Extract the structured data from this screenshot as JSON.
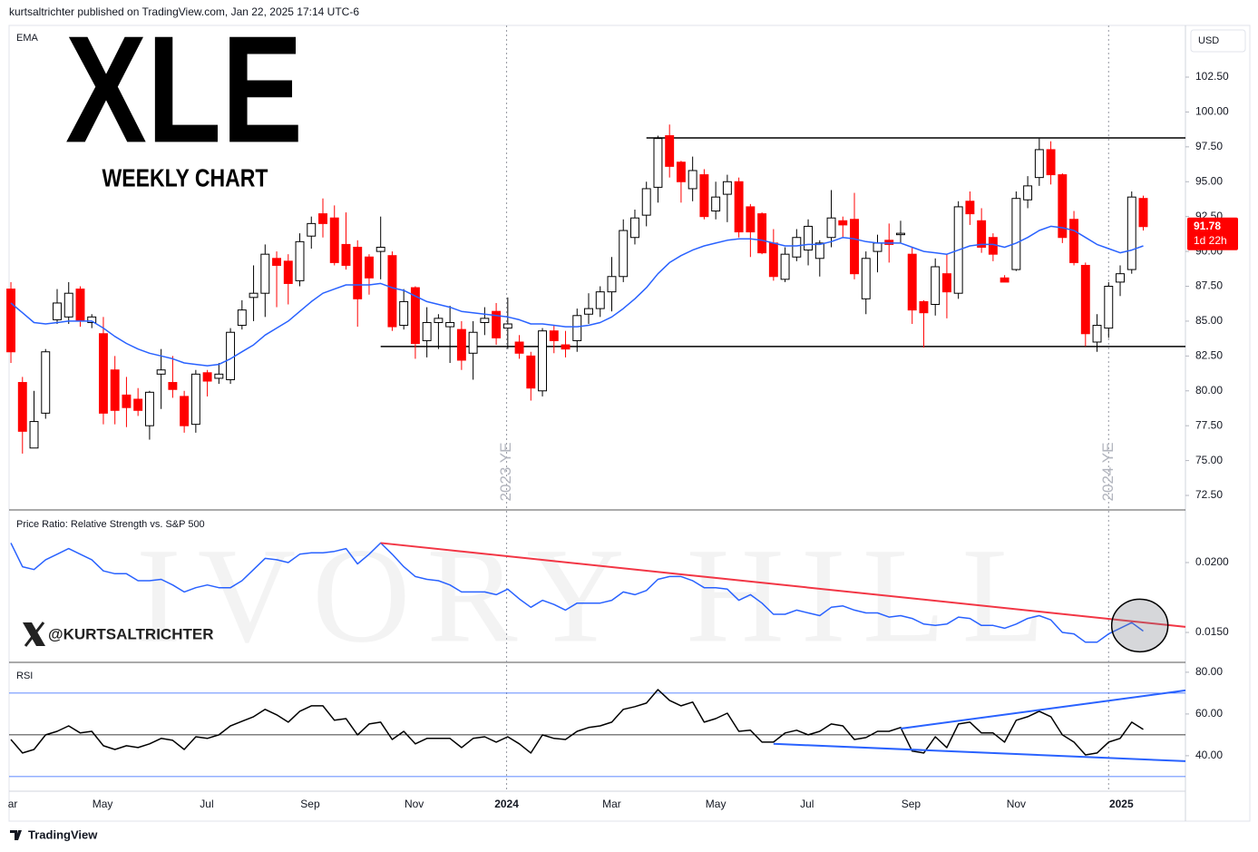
{
  "header": "kurtsaltrichter published on TradingView.com, Jan 22, 2025 17:14 UTC-6",
  "footer": "TradingView",
  "handle": "@KURTSALTRICHTER",
  "watermark": "IVORY HILL",
  "chart_data": {
    "type": "candlestick",
    "title": "XLE",
    "subtitle": "WEEKLY CHART",
    "indicator_label": "EMA",
    "currency": "USD",
    "up_color": "#ffffff",
    "down_color": "#ff0000",
    "ema_color": "#2962ff",
    "xlim": [
      -0.16,
      101.65
    ],
    "xticks": [
      {
        "value": 0.16,
        "label": "ar"
      },
      {
        "value": 7.93,
        "label": "May"
      },
      {
        "value": 16.95,
        "label": "Jul"
      },
      {
        "value": 25.9,
        "label": "Sep"
      },
      {
        "value": 34.9,
        "label": "Nov"
      },
      {
        "value": 42.9,
        "label": "2024",
        "bold": true
      },
      {
        "value": 52.0,
        "label": "Mar"
      },
      {
        "value": 61.0,
        "label": "May"
      },
      {
        "value": 68.9,
        "label": "Jul"
      },
      {
        "value": 77.9,
        "label": "Sep"
      },
      {
        "value": 87.0,
        "label": "Nov"
      },
      {
        "value": 96.1,
        "label": "2025",
        "bold": true
      }
    ],
    "ylim": [
      71.46,
      106.21
    ],
    "yticks": [
      {
        "value": 72.5,
        "label": "72.50"
      },
      {
        "value": 75,
        "label": "75.00"
      },
      {
        "value": 77.5,
        "label": "77.50"
      },
      {
        "value": 80,
        "label": "80.00"
      },
      {
        "value": 82.5,
        "label": "82.50"
      },
      {
        "value": 85,
        "label": "85.00"
      },
      {
        "value": 87.5,
        "label": "87.50"
      },
      {
        "value": 90,
        "label": "90.00"
      },
      {
        "value": 92.5,
        "label": "92.50"
      },
      {
        "value": 95,
        "label": "95.00"
      },
      {
        "value": 97.5,
        "label": "97.50"
      },
      {
        "value": 100,
        "label": "100.00"
      },
      {
        "value": 102.5,
        "label": "102.50"
      }
    ],
    "open": [
      87.3,
      80.6,
      75.9,
      78.4,
      85.1,
      85.3,
      87.3,
      84.9,
      84.1,
      81.5,
      79.7,
      79.4,
      77.5,
      81.2,
      80.6,
      79.6,
      77.6,
      81.3,
      80.9,
      80.8,
      84.7,
      86.7,
      87.0,
      89.5,
      89.3,
      87.9,
      91.1,
      92.7,
      92.4,
      90.5,
      90.3,
      89.6,
      90.0,
      89.7,
      84.7,
      87.4,
      83.6,
      84.9,
      84.6,
      84.4,
      82.7,
      84.9,
      85.7,
      84.5,
      83.5,
      82.5,
      80.0,
      84.3,
      83.3,
      83.6,
      85.5,
      85.9,
      87.1,
      88.2,
      91.0,
      92.6,
      94.6,
      98.3,
      96.4,
      94.5,
      95.5,
      92.9,
      94.1,
      95.0,
      93.2,
      92.7,
      90.6,
      88.0,
      89.6,
      90.1,
      89.5,
      91.0,
      92.2,
      92.3,
      86.6,
      90.0,
      90.8,
      91.2,
      89.8,
      86.4,
      86.2,
      88.4,
      87.0,
      93.6,
      92.2,
      91.0,
      88.1,
      88.7,
      93.7,
      95.3,
      97.3,
      95.5,
      92.3,
      89.0,
      83.5,
      84.5,
      87.8,
      88.7,
      93.8
    ],
    "high": [
      87.8,
      81,
      80,
      83,
      87.3,
      87.8,
      87.5,
      85.5,
      85.3,
      82.5,
      81,
      80.2,
      80,
      83,
      82.5,
      80,
      81.5,
      81.5,
      82,
      84.5,
      86.5,
      89,
      90.5,
      90,
      89.8,
      91.3,
      92.5,
      93.8,
      93.3,
      92.8,
      90.8,
      89.8,
      92.5,
      90,
      87.3,
      87.5,
      86,
      85.5,
      86.1,
      85,
      85,
      86,
      86.3,
      86.7,
      84,
      82.8,
      84.5,
      84.7,
      84.3,
      85.9,
      87,
      87.5,
      89.6,
      92.3,
      93,
      95,
      98.3,
      99.1,
      96.5,
      96.8,
      95.9,
      95,
      95.5,
      95.3,
      93.4,
      92.8,
      91.6,
      90.3,
      91.6,
      92.3,
      90.8,
      94.4,
      92.5,
      94.2,
      90,
      91.2,
      92,
      92.2,
      90.3,
      86.5,
      89.5,
      89.8,
      93.6,
      94.3,
      93.1,
      91.3,
      88.3,
      94.3,
      95.4,
      98.1,
      97.9,
      95.6,
      92.9,
      89.2,
      85.5,
      87.8,
      89,
      94.3,
      94.0
    ],
    "low": [
      82,
      75.5,
      75.9,
      78,
      84.8,
      84.8,
      84.6,
      84.5,
      77.6,
      77.6,
      77.4,
      78.2,
      76.5,
      78.7,
      79.5,
      77,
      77,
      79.6,
      80.5,
      80.5,
      84.4,
      85,
      85.3,
      86,
      86.2,
      87.5,
      90.2,
      91,
      89,
      88.7,
      84.6,
      86.9,
      88,
      84.3,
      84.4,
      82.3,
      82.4,
      83,
      82,
      81.5,
      80.8,
      84,
      83.3,
      83,
      82.3,
      79.3,
      79.6,
      82.7,
      82.4,
      82.8,
      84.8,
      85.3,
      85.7,
      87.8,
      90.5,
      91.8,
      93.5,
      95.3,
      93.5,
      93.6,
      92.3,
      92.3,
      92.1,
      91,
      89.6,
      89.8,
      87.9,
      87.8,
      89.3,
      89,
      88.2,
      90.3,
      91,
      88,
      85.5,
      88.5,
      89.2,
      90.6,
      84.8,
      83.1,
      85.4,
      85.2,
      86.6,
      91.9,
      89.9,
      89.3,
      87.8,
      88.6,
      93.1,
      94.7,
      94.8,
      90.6,
      89,
      83.2,
      82.8,
      83.8,
      86.8,
      88.4,
      91.5
    ],
    "close": [
      82.8,
      77.1,
      77.8,
      82.8,
      86.3,
      87.0,
      85.0,
      85.3,
      78.4,
      78.6,
      78.8,
      78.6,
      79.9,
      81.5,
      80.1,
      77.5,
      81.2,
      80.7,
      81.2,
      84.2,
      85.8,
      87.0,
      89.8,
      89.0,
      87.7,
      90.7,
      92.0,
      92.0,
      89.2,
      89.0,
      86.6,
      88.1,
      90.3,
      84.6,
      86.4,
      83.4,
      84.9,
      85.2,
      84.9,
      82.2,
      84.2,
      85.2,
      83.8,
      84.8,
      82.7,
      80.2,
      84.3,
      83.6,
      83.0,
      85.4,
      85.9,
      87.1,
      88.2,
      91.5,
      92.4,
      94.5,
      98.1,
      96.1,
      95.0,
      95.8,
      92.5,
      93.9,
      95.0,
      91.4,
      91.4,
      89.9,
      88.2,
      89.8,
      91.0,
      91.8,
      90.6,
      92.4,
      91.9,
      88.4,
      89.5,
      90.6,
      90.5,
      91.3,
      85.8,
      85.6,
      88.9,
      87.1,
      93.2,
      92.7,
      90.3,
      89.8,
      87.8,
      93.8,
      94.7,
      97.3,
      95.5,
      91.0,
      89.2,
      84.1,
      84.7,
      87.5,
      88.4,
      93.9,
      91.78
    ],
    "ema": [
      86.3,
      85.6,
      84.9,
      84.8,
      84.9,
      85.0,
      85.0,
      85.0,
      84.5,
      83.9,
      83.4,
      83.0,
      82.7,
      82.5,
      82.3,
      82.0,
      81.9,
      81.8,
      81.9,
      82.3,
      82.8,
      83.3,
      84.0,
      84.5,
      85.0,
      85.7,
      86.4,
      87.0,
      87.3,
      87.6,
      87.6,
      87.6,
      87.7,
      87.4,
      87.2,
      86.8,
      86.4,
      86.2,
      86.0,
      85.7,
      85.6,
      85.5,
      85.4,
      85.3,
      85.1,
      84.8,
      84.8,
      84.7,
      84.6,
      84.6,
      84.7,
      84.9,
      85.3,
      85.9,
      86.6,
      87.4,
      88.4,
      89.2,
      89.7,
      90.1,
      90.4,
      90.6,
      90.8,
      90.9,
      90.9,
      90.8,
      90.6,
      90.4,
      90.4,
      90.5,
      90.5,
      90.7,
      91.0,
      90.9,
      90.7,
      90.6,
      90.6,
      90.6,
      90.3,
      90.0,
      89.9,
      89.8,
      90.1,
      90.4,
      90.5,
      90.5,
      90.3,
      90.6,
      91.0,
      91.5,
      91.8,
      91.7,
      91.5,
      91.0,
      90.5,
      90.2,
      89.9,
      90.1,
      90.4
    ],
    "levels": [
      {
        "value": 98.14,
        "x_start": 55
      },
      {
        "value": 83.18,
        "x_start": 32
      }
    ],
    "markers": [
      {
        "x": 42.9,
        "label": "2023 YE"
      },
      {
        "x": 95.0,
        "label": "2024 YE"
      }
    ],
    "last_price": 91.78,
    "countdown": "1d 22h",
    "panes": [
      {
        "type": "line",
        "title": "Price Ratio: Relative Strength vs. S&P 500",
        "ylim": [
          0.01286,
          0.0237
        ],
        "yticks": [
          {
            "value": 0.02,
            "label": "0.0200"
          },
          {
            "value": 0.015,
            "label": "0.0150"
          }
        ],
        "series": [
          {
            "color": "#2962ff",
            "values": [
              0.0214,
              0.0197,
              0.0195,
              0.0202,
              0.0206,
              0.021,
              0.0206,
              0.0202,
              0.0194,
              0.0192,
              0.0192,
              0.0187,
              0.0187,
              0.0188,
              0.0184,
              0.0179,
              0.0182,
              0.0184,
              0.0182,
              0.0182,
              0.0187,
              0.0195,
              0.0203,
              0.0202,
              0.02,
              0.0206,
              0.0207,
              0.0207,
              0.0208,
              0.021,
              0.0199,
              0.0206,
              0.0214,
              0.0206,
              0.0197,
              0.019,
              0.0188,
              0.0187,
              0.0184,
              0.0179,
              0.0179,
              0.0179,
              0.0177,
              0.0181,
              0.0174,
              0.0168,
              0.0173,
              0.017,
              0.0166,
              0.0171,
              0.0171,
              0.0171,
              0.0173,
              0.0179,
              0.0177,
              0.018,
              0.0188,
              0.019,
              0.019,
              0.0187,
              0.0182,
              0.0182,
              0.0181,
              0.0173,
              0.0177,
              0.0171,
              0.0163,
              0.0163,
              0.0166,
              0.0164,
              0.0162,
              0.0168,
              0.0169,
              0.0166,
              0.0164,
              0.0164,
              0.0161,
              0.0162,
              0.016,
              0.0156,
              0.0155,
              0.0156,
              0.0161,
              0.016,
              0.0155,
              0.0155,
              0.0153,
              0.0156,
              0.016,
              0.0162,
              0.0159,
              0.015,
              0.0149,
              0.0143,
              0.0143,
              0.0149,
              0.0153,
              0.0157,
              0.0151
            ]
          }
        ],
        "trendlines": [
          {
            "color": "#f23645",
            "x": [
              32,
              101.65
            ],
            "y": [
              0.0214,
              0.0154
            ]
          }
        ],
        "highlight": {
          "x": 97.7,
          "y": 0.0155
        }
      },
      {
        "type": "line",
        "title": "RSI",
        "ylim": [
          23.0,
          84.3
        ],
        "yticks": [
          {
            "value": 80,
            "label": "80.00"
          },
          {
            "value": 60,
            "label": "60.00"
          },
          {
            "value": 40,
            "label": "40.00"
          }
        ],
        "bands": [
          {
            "value": 70,
            "color": "#2962ff"
          },
          {
            "value": 50,
            "color": "#000000"
          },
          {
            "value": 30,
            "color": "#2962ff"
          }
        ],
        "series": [
          {
            "color": "#000000",
            "values": [
              47.8,
              41.3,
              43.0,
              50.0,
              51.7,
              54.3,
              50.9,
              51.7,
              44.8,
              43.0,
              44.8,
              43.9,
              45.7,
              48.3,
              47.4,
              43.0,
              49.1,
              48.3,
              50.0,
              54.3,
              56.5,
              58.7,
              62.2,
              59.6,
              56.1,
              61.3,
              63.9,
              63.9,
              57.0,
              57.8,
              50.0,
              55.2,
              56.1,
              47.8,
              51.7,
              45.7,
              48.3,
              48.3,
              48.3,
              43.9,
              48.3,
              49.1,
              46.5,
              49.1,
              45.7,
              41.3,
              50.0,
              48.3,
              47.8,
              51.7,
              53.5,
              54.3,
              56.1,
              62.2,
              63.5,
              65.2,
              71.7,
              66.5,
              63.9,
              65.7,
              56.1,
              57.8,
              60.4,
              51.7,
              52.2,
              46.5,
              46.5,
              50.9,
              52.2,
              50.0,
              51.7,
              55.2,
              54.3,
              47.8,
              48.7,
              51.7,
              51.7,
              53.5,
              42.2,
              41.3,
              49.1,
              43.9,
              55.2,
              56.1,
              50.9,
              50.9,
              46.5,
              57.0,
              58.7,
              61.3,
              58.7,
              50.0,
              46.5,
              40.4,
              41.3,
              46.5,
              48.3,
              56.1,
              52.6
            ]
          }
        ],
        "trendlines": [
          {
            "color": "#2962ff",
            "x": [
              66,
              101.65
            ],
            "y": [
              45.7,
              37.4
            ]
          },
          {
            "color": "#2962ff",
            "x": [
              77,
              101.65
            ],
            "y": [
              53.0,
              71.3
            ]
          }
        ]
      }
    ]
  }
}
